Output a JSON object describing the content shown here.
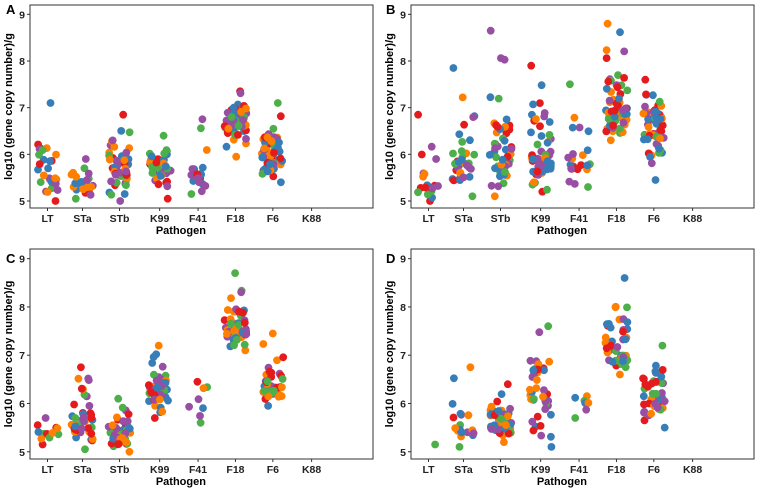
{
  "figure": {
    "colors": [
      "#e41a1c",
      "#377eb8",
      "#4daf4a",
      "#984ea3",
      "#ff7f00"
    ]
  },
  "chart_data": [
    {
      "panel": "A",
      "type": "scatter",
      "xlabel": "Pathogen",
      "ylabel": "log10 (gene copy number)/g",
      "categories": [
        "LT",
        "STa",
        "STb",
        "K99",
        "F41",
        "F18",
        "F6",
        "K88"
      ],
      "ylim": [
        4.85,
        9.2
      ],
      "yticks": [
        5,
        6,
        7,
        8,
        9
      ],
      "groups": [
        {
          "category": "LT",
          "n": 28,
          "min": 5.0,
          "max": 7.1,
          "median": 5.5
        },
        {
          "category": "STa",
          "n": 24,
          "min": 5.05,
          "max": 5.9,
          "median": 5.4
        },
        {
          "category": "STb",
          "n": 50,
          "min": 5.0,
          "max": 6.85,
          "median": 5.6
        },
        {
          "category": "K99",
          "n": 42,
          "min": 5.05,
          "max": 6.4,
          "median": 5.75
        },
        {
          "category": "F41",
          "n": 18,
          "min": 5.15,
          "max": 6.75,
          "median": 5.6
        },
        {
          "category": "F18",
          "n": 55,
          "min": 5.95,
          "max": 7.35,
          "median": 6.8
        },
        {
          "category": "F6",
          "n": 55,
          "min": 5.4,
          "max": 7.1,
          "median": 5.95
        },
        {
          "category": "K88",
          "n": 0
        }
      ]
    },
    {
      "panel": "B",
      "type": "scatter",
      "xlabel": "Pathogen",
      "ylabel": "log10 (gene copy number)/g",
      "categories": [
        "LT",
        "STa",
        "STb",
        "K99",
        "F41",
        "F18",
        "F6",
        "K88"
      ],
      "ylim": [
        4.85,
        9.2
      ],
      "yticks": [
        5,
        6,
        7,
        8,
        9
      ],
      "groups": [
        {
          "category": "LT",
          "n": 20,
          "min": 5.0,
          "max": 6.85,
          "median": 5.35
        },
        {
          "category": "STa",
          "n": 35,
          "min": 5.1,
          "max": 7.85,
          "median": 5.9
        },
        {
          "category": "STb",
          "n": 50,
          "min": 5.1,
          "max": 8.65,
          "median": 5.8
        },
        {
          "category": "K99",
          "n": 55,
          "min": 5.2,
          "max": 7.9,
          "median": 5.9
        },
        {
          "category": "F41",
          "n": 22,
          "min": 5.3,
          "max": 7.5,
          "median": 5.8
        },
        {
          "category": "F18",
          "n": 60,
          "min": 6.3,
          "max": 8.8,
          "median": 7.0
        },
        {
          "category": "F6",
          "n": 60,
          "min": 5.45,
          "max": 7.6,
          "median": 6.5
        },
        {
          "category": "K88",
          "n": 0
        }
      ]
    },
    {
      "panel": "C",
      "type": "scatter",
      "xlabel": "Pathogen",
      "ylabel": "log10 (gene copy number)/g",
      "categories": [
        "LT",
        "STa",
        "STb",
        "K99",
        "F41",
        "F18",
        "F6",
        "K88"
      ],
      "ylim": [
        4.85,
        9.2
      ],
      "yticks": [
        5,
        6,
        7,
        8,
        9
      ],
      "groups": [
        {
          "category": "LT",
          "n": 12,
          "min": 5.15,
          "max": 5.7,
          "median": 5.4
        },
        {
          "category": "STa",
          "n": 45,
          "min": 5.05,
          "max": 6.75,
          "median": 5.6
        },
        {
          "category": "STb",
          "n": 60,
          "min": 5.0,
          "max": 6.1,
          "median": 5.4
        },
        {
          "category": "K99",
          "n": 45,
          "min": 5.7,
          "max": 7.2,
          "median": 6.3
        },
        {
          "category": "F41",
          "n": 8,
          "min": 5.6,
          "max": 6.45,
          "median": 6.2
        },
        {
          "category": "F18",
          "n": 50,
          "min": 7.1,
          "max": 8.7,
          "median": 7.5
        },
        {
          "category": "F6",
          "n": 45,
          "min": 5.95,
          "max": 7.45,
          "median": 6.35
        },
        {
          "category": "K88",
          "n": 0
        }
      ]
    },
    {
      "panel": "D",
      "type": "scatter",
      "xlabel": "Pathogen",
      "ylabel": "log10 (gene copy number)/g",
      "categories": [
        "LT",
        "STa",
        "STb",
        "K99",
        "F41",
        "F18",
        "F6",
        "K88"
      ],
      "ylim": [
        4.85,
        9.2
      ],
      "yticks": [
        5,
        6,
        7,
        8,
        9
      ],
      "groups": [
        {
          "category": "LT",
          "n": 1,
          "min": 5.15,
          "max": 5.15,
          "median": 5.15
        },
        {
          "category": "STa",
          "n": 18,
          "min": 5.1,
          "max": 6.75,
          "median": 5.5
        },
        {
          "category": "STb",
          "n": 50,
          "min": 5.2,
          "max": 6.4,
          "median": 5.6
        },
        {
          "category": "K99",
          "n": 40,
          "min": 5.1,
          "max": 7.6,
          "median": 6.2
        },
        {
          "category": "F41",
          "n": 7,
          "min": 5.7,
          "max": 6.15,
          "median": 6.05
        },
        {
          "category": "F18",
          "n": 50,
          "min": 6.6,
          "max": 8.6,
          "median": 7.0
        },
        {
          "category": "F6",
          "n": 45,
          "min": 5.5,
          "max": 7.2,
          "median": 6.1
        },
        {
          "category": "K88",
          "n": 0
        }
      ]
    }
  ]
}
